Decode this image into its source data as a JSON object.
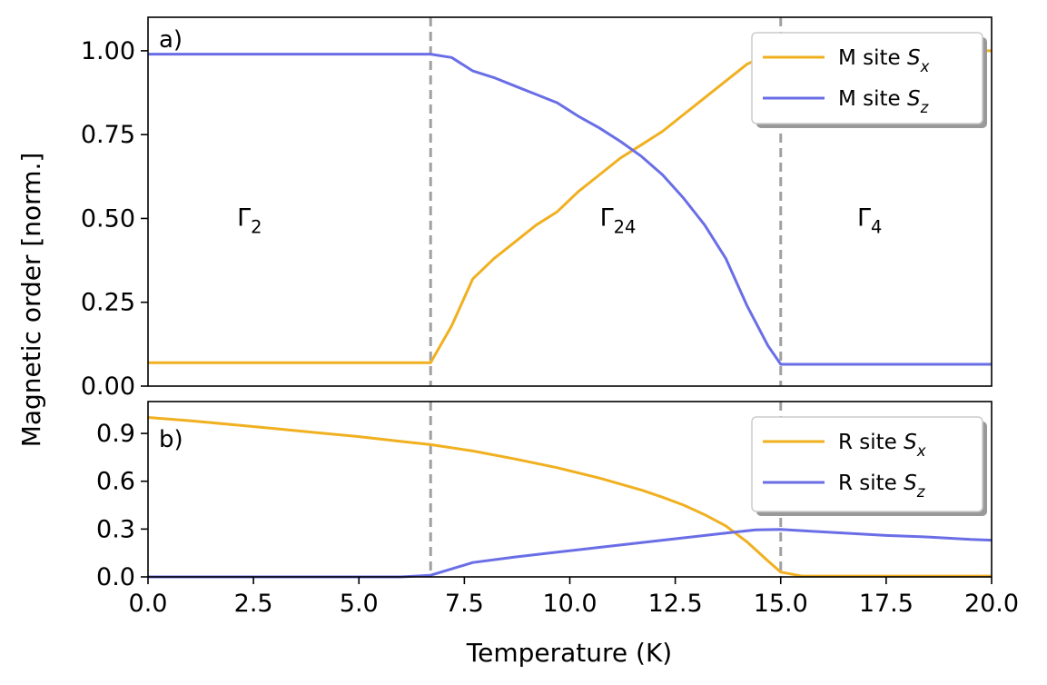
{
  "chart_data": [
    {
      "type": "line",
      "panel_label": "a)",
      "xlabel": "",
      "ylabel": "Magnetic order [norm.]",
      "xlim": [
        0,
        20
      ],
      "ylim": [
        0,
        1.1
      ],
      "yticks": [
        "0.00",
        "0.25",
        "0.50",
        "0.75",
        "1.00"
      ],
      "ytick_values": [
        0,
        0.25,
        0.5,
        0.75,
        1.0
      ],
      "grid": false,
      "legend_position": "top-right",
      "phase_boundaries": [
        6.7,
        15.0
      ],
      "regions": [
        {
          "label": "Γ",
          "sub": "2",
          "x": 2.5,
          "y": 0.5
        },
        {
          "label": "Γ",
          "sub": "24",
          "x": 11.1,
          "y": 0.5
        },
        {
          "label": "Γ",
          "sub": "4",
          "x": 17.2,
          "y": 0.5
        }
      ],
      "series": [
        {
          "name": "M site  S",
          "name_sub": "x",
          "color": "#f0b020",
          "x": [
            0,
            2,
            4,
            6,
            6.7,
            7.2,
            7.7,
            8.2,
            8.7,
            9.2,
            9.7,
            10.2,
            10.7,
            11.2,
            11.7,
            12.2,
            12.7,
            13.2,
            13.7,
            14.2,
            14.7,
            15.0,
            15.5,
            17,
            18,
            20
          ],
          "y": [
            0.07,
            0.07,
            0.07,
            0.07,
            0.07,
            0.18,
            0.32,
            0.38,
            0.43,
            0.48,
            0.52,
            0.58,
            0.63,
            0.68,
            0.72,
            0.76,
            0.81,
            0.86,
            0.91,
            0.96,
            0.99,
            1.0,
            1.0,
            1.0,
            1.0,
            1.0
          ]
        },
        {
          "name": "M site  S",
          "name_sub": "z",
          "color": "#6a6ee6",
          "x": [
            0,
            2,
            4,
            6,
            6.7,
            7.2,
            7.7,
            8.2,
            8.7,
            9.2,
            9.7,
            10.2,
            10.7,
            11.2,
            11.7,
            12.2,
            12.7,
            13.2,
            13.7,
            14.2,
            14.7,
            15.0,
            16,
            18,
            20
          ],
          "y": [
            0.99,
            0.99,
            0.99,
            0.99,
            0.99,
            0.98,
            0.94,
            0.92,
            0.895,
            0.87,
            0.845,
            0.805,
            0.77,
            0.73,
            0.685,
            0.63,
            0.56,
            0.48,
            0.38,
            0.24,
            0.12,
            0.065,
            0.065,
            0.065,
            0.065
          ]
        }
      ]
    },
    {
      "type": "line",
      "panel_label": "b)",
      "xlabel": "Temperature (K)",
      "ylabel": "",
      "xlim": [
        0,
        20
      ],
      "ylim": [
        0,
        1.1
      ],
      "xticks": [
        "0.0",
        "2.5",
        "5.0",
        "7.5",
        "10.0",
        "12.5",
        "15.0",
        "17.5",
        "20.0"
      ],
      "xtick_values": [
        0,
        2.5,
        5,
        7.5,
        10,
        12.5,
        15,
        17.5,
        20
      ],
      "yticks": [
        "0.0",
        "0.3",
        "0.6",
        "0.9"
      ],
      "ytick_values": [
        0,
        0.3,
        0.6,
        0.9
      ],
      "grid": false,
      "legend_position": "top-right",
      "phase_boundaries": [
        6.7,
        15.0
      ],
      "series": [
        {
          "name": "R site  S",
          "name_sub": "x",
          "color": "#f0b020",
          "x": [
            0,
            1,
            2,
            3,
            4,
            5,
            6,
            6.7,
            7.7,
            8.7,
            9.7,
            10.7,
            11.7,
            12.2,
            12.7,
            13.2,
            13.7,
            14.2,
            14.7,
            15.0,
            15.5,
            17,
            20
          ],
          "y": [
            1.0,
            0.98,
            0.955,
            0.93,
            0.905,
            0.88,
            0.85,
            0.83,
            0.79,
            0.74,
            0.685,
            0.62,
            0.545,
            0.5,
            0.45,
            0.39,
            0.32,
            0.22,
            0.1,
            0.03,
            0.005,
            0.005,
            0.005
          ]
        },
        {
          "name": "R site S",
          "name_sub": "z",
          "color": "#6a6ee6",
          "x": [
            0,
            2,
            4,
            6,
            6.7,
            7.2,
            7.7,
            8.7,
            9.7,
            10.7,
            11.7,
            12.7,
            13.7,
            14.4,
            15.0,
            15.5,
            16.5,
            17.5,
            18.5,
            19.5,
            20
          ],
          "y": [
            0,
            0,
            0,
            0,
            0.01,
            0.05,
            0.09,
            0.125,
            0.155,
            0.185,
            0.215,
            0.245,
            0.275,
            0.295,
            0.298,
            0.29,
            0.275,
            0.26,
            0.25,
            0.235,
            0.23
          ]
        }
      ]
    }
  ]
}
